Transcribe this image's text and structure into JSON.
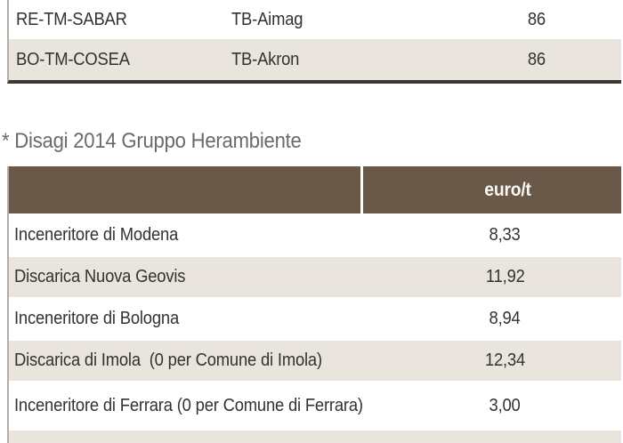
{
  "colors": {
    "header_brown": "#6a5849",
    "row_beige": "#e9e4dd",
    "heading_gray": "#6f6964",
    "text_dark": "#343230",
    "top_table_bottom_rule": "#3b3936",
    "left_border_gray": "#b3ada4",
    "header_text_white": "#faf8f5"
  },
  "top_table": {
    "rows": [
      {
        "code": "RE-TM-SABAR",
        "plant": "TB-Aimag",
        "value": "86"
      },
      {
        "code": "BO-TM-COSEA",
        "plant": "TB-Akron",
        "value": "86"
      }
    ]
  },
  "section": {
    "heading": "* Disagi 2014 Gruppo Herambiente"
  },
  "main_table": {
    "header": {
      "label": "",
      "unit": "euro/t"
    },
    "rows": [
      {
        "label": "Inceneritore di Modena",
        "value": "8,33"
      },
      {
        "label": "Discarica Nuova Geovis",
        "value": "11,92"
      },
      {
        "label": "Inceneritore di Bologna",
        "value": "8,94"
      },
      {
        "label": "Discarica di Imola  (0 per Comune di Imola)",
        "value": "12,34"
      },
      {
        "label": "Inceneritore di Ferrara (0 per Comune di Ferrara)",
        "value": "3,00"
      }
    ]
  }
}
